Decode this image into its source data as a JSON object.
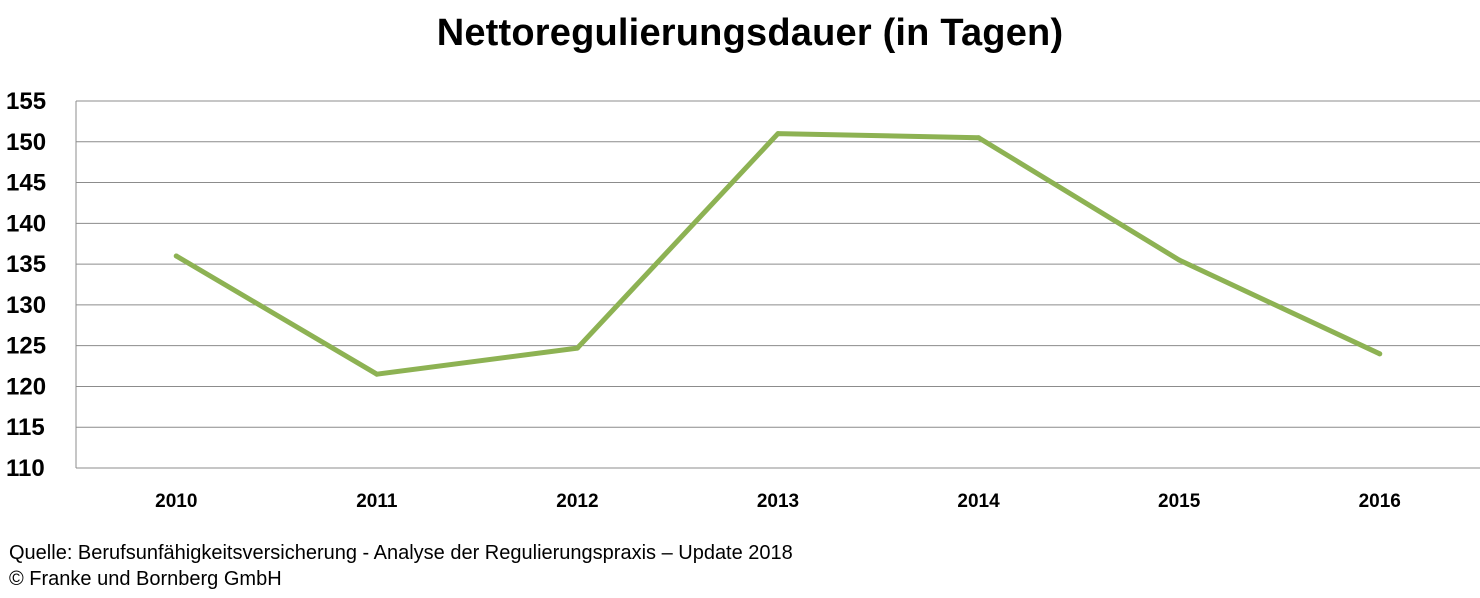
{
  "chart_data": {
    "type": "line",
    "title": "Nettoregulierungsdauer (in Tagen)",
    "xlabel": "",
    "ylabel": "",
    "categories": [
      "2010",
      "2011",
      "2012",
      "2013",
      "2014",
      "2015",
      "2016"
    ],
    "series": [
      {
        "values": [
          136,
          121.5,
          124.7,
          151,
          150.5,
          135.5,
          124
        ],
        "color": "#8db253"
      }
    ],
    "ylim": [
      110,
      155
    ],
    "yticks": [
      "110",
      "115",
      "120",
      "125",
      "130",
      "135",
      "140",
      "145",
      "150",
      "155"
    ],
    "grid": true,
    "legend": "none"
  },
  "footer": {
    "source": "Quelle: Berufsunfähigkeitsversicherung - Analyse der Regulierungspraxis – Update 2018",
    "copyright": "© Franke und Bornberg GmbH"
  }
}
